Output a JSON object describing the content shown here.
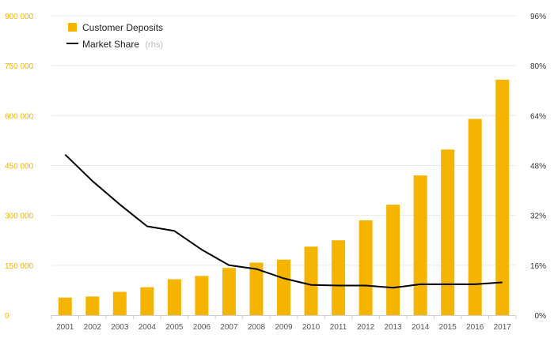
{
  "chart_data": {
    "type": "bar",
    "categories": [
      "2001",
      "2002",
      "2003",
      "2004",
      "2005",
      "2006",
      "2007",
      "2008",
      "2009",
      "2010",
      "2011",
      "2012",
      "2013",
      "2014",
      "2015",
      "2016",
      "2017"
    ],
    "series": [
      {
        "name": "Customer Deposits",
        "type": "bar",
        "axis": "left",
        "color": "#f5b400",
        "values": [
          53000,
          56000,
          70000,
          84000,
          108000,
          118000,
          142000,
          158000,
          167000,
          206000,
          225000,
          285000,
          332000,
          420000,
          498000,
          590000,
          708000
        ]
      },
      {
        "name": "Market Share",
        "type": "line",
        "axis": "right",
        "color": "#000000",
        "values": [
          51.5,
          43,
          35.5,
          28.5,
          27,
          21,
          16,
          14.8,
          11.8,
          9.7,
          9.5,
          9.5,
          8.8,
          9.9,
          9.9,
          9.9,
          10.5
        ]
      }
    ],
    "legend": {
      "items": [
        {
          "label": "Customer Deposits",
          "note": ""
        },
        {
          "label": "Market Share",
          "note": "(rhs)"
        }
      ],
      "placement": "top-left"
    },
    "y_left": {
      "ylim": [
        0,
        900000
      ],
      "ticks": [
        0,
        150000,
        300000,
        450000,
        600000,
        750000,
        900000
      ],
      "tick_labels": [
        "0",
        "150 000",
        "300 000",
        "450 000",
        "600 000",
        "750 000",
        "900 000"
      ],
      "color": "#f5b400"
    },
    "y_right": {
      "ylim": [
        0,
        96
      ],
      "ticks": [
        0,
        16,
        32,
        48,
        64,
        80,
        96
      ],
      "tick_labels": [
        "0%",
        "16%",
        "32%",
        "48%",
        "64%",
        "80%",
        "96%"
      ],
      "color": "#333333"
    },
    "grid": true,
    "title": "",
    "xlabel": "",
    "ylabel": ""
  }
}
